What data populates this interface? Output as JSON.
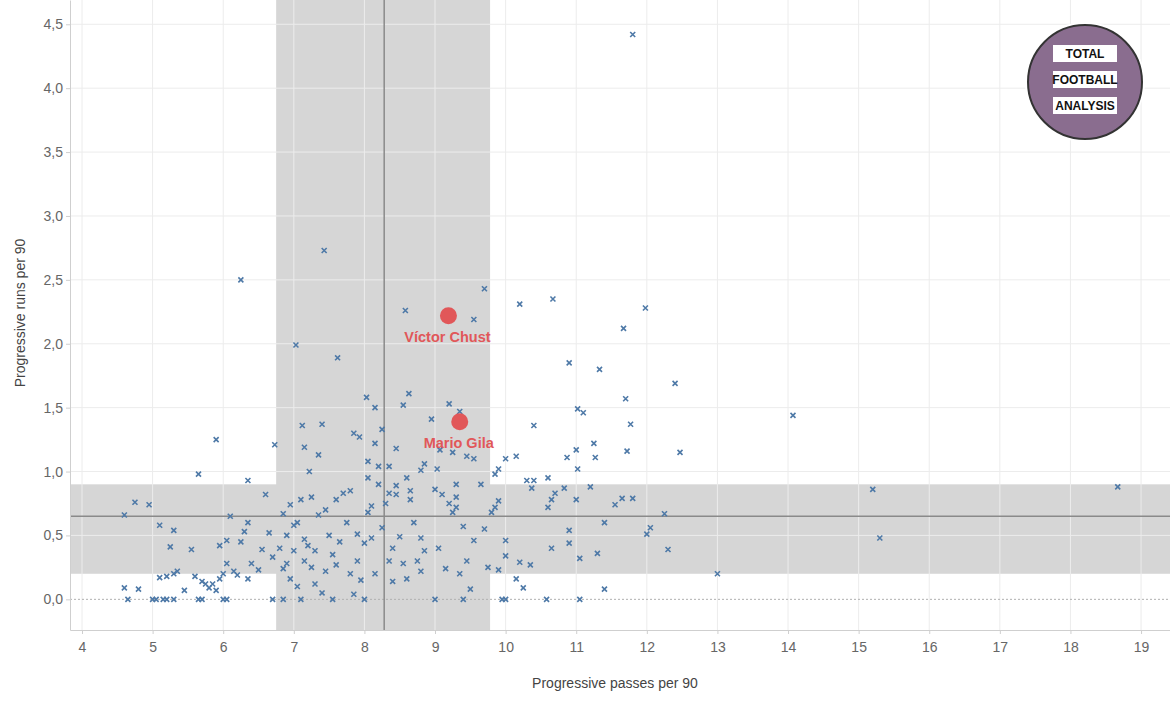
{
  "chart_data": {
    "type": "scatter",
    "x_label": "Progressive passes per 90",
    "y_label": "Progressive runs per 90",
    "xlim": [
      3.83,
      19.41
    ],
    "ylim": [
      -0.24,
      4.69
    ],
    "xticks": [
      4,
      5,
      6,
      7,
      8,
      9,
      10,
      11,
      12,
      13,
      14,
      15,
      16,
      17,
      18,
      19
    ],
    "yticks": [
      {
        "value": 0,
        "label": "0,0"
      },
      {
        "value": 0.5,
        "label": "0,5"
      },
      {
        "value": 1,
        "label": "1,0"
      },
      {
        "value": 1.5,
        "label": "1,5"
      },
      {
        "value": 2,
        "label": "2,0"
      },
      {
        "value": 2.5,
        "label": "2,5"
      },
      {
        "value": 3,
        "label": "3,0"
      },
      {
        "value": 3.5,
        "label": "3,5"
      },
      {
        "value": 4,
        "label": "4,0"
      },
      {
        "value": 4.5,
        "label": "4,5"
      }
    ],
    "grid": true,
    "x_band": [
      6.75,
      9.78
    ],
    "y_band": [
      0.2,
      0.9
    ],
    "x_mean": 8.28,
    "y_mean": 0.65,
    "logo_text": [
      "TOTAL",
      "FOOTBALL",
      "ANALYSIS"
    ],
    "series": [
      {
        "color": "#4e79a7",
        "marker": "x",
        "x": [
          11.8,
          7.43,
          6.25,
          9.7,
          10.67,
          10.2,
          11.98,
          8.58,
          9.55,
          11.67,
          7.03,
          7.62,
          10.9,
          11.33,
          12.4,
          8.63,
          8.03,
          11.7,
          8.55,
          9.2,
          11.02,
          11.1,
          14.07,
          8.15,
          10.4,
          11.77,
          7.4,
          7.12,
          8.95,
          7.93,
          8.15,
          5.9,
          6.73,
          7.15,
          11.25,
          11.0,
          11.72,
          10.0,
          10.15,
          10.87,
          11.27,
          12.47,
          7.35,
          8.25,
          8.05,
          8.2,
          8.35,
          9.45,
          9.55,
          9.07,
          9.03,
          8.8,
          9.9,
          9.85,
          5.65,
          6.35,
          7.22,
          10.6,
          10.3,
          11.02,
          10.83,
          10.7,
          10.37,
          10.4,
          15.2,
          18.67,
          11.8,
          11.2,
          13.0,
          15.3,
          12.0,
          12.05,
          12.25,
          12.3,
          11.55,
          11.65,
          11.4,
          11.05,
          11.05,
          11.3,
          11.4,
          10.58,
          10.65,
          10.9,
          10.9,
          10.15,
          10.25,
          10.2,
          10.35,
          10.0,
          10.0,
          9.95,
          10.0,
          9.9,
          10.6,
          10.65,
          11.0,
          4.6,
          4.65,
          4.6,
          4.75,
          4.8,
          4.95,
          5.0,
          5.05,
          5.1,
          5.1,
          5.15,
          5.2,
          5.2,
          5.25,
          5.3,
          5.35,
          5.3,
          5.3,
          5.45,
          5.55,
          5.6,
          5.7,
          5.75,
          5.65,
          5.7,
          5.8,
          5.85,
          5.9,
          5.95,
          5.95,
          6.0,
          6.05,
          6.0,
          6.05,
          6.05,
          6.1,
          6.15,
          6.2,
          6.25,
          6.3,
          6.35,
          6.4,
          6.35,
          6.5,
          6.55,
          6.6,
          6.65,
          6.7,
          6.7,
          6.85,
          6.9,
          6.8,
          6.95,
          6.85,
          6.9,
          6.95,
          7.0,
          7.05,
          7.1,
          7.15,
          7.1,
          7.15,
          7.2,
          7.25,
          7.3,
          7.35,
          7.4,
          7.45,
          7.45,
          7.5,
          7.55,
          7.55,
          7.6,
          7.65,
          7.7,
          7.75,
          7.8,
          7.8,
          7.85,
          7.9,
          7.95,
          8.0,
          8.0,
          8.05,
          8.1,
          8.15,
          8.2,
          8.25,
          8.3,
          8.35,
          8.35,
          8.4,
          8.45,
          8.5,
          8.55,
          8.6,
          8.65,
          8.7,
          8.75,
          8.8,
          8.85,
          9.0,
          9.0,
          9.05,
          9.1,
          9.15,
          9.2,
          9.25,
          9.3,
          9.35,
          9.4,
          9.4,
          9.45,
          9.5,
          9.55,
          9.65,
          9.7,
          9.75,
          9.8,
          9.85,
          9.9,
          8.1,
          7.6,
          7.25,
          7.05,
          7.3,
          8.4,
          8.65,
          9.3,
          7.9,
          8.8,
          6.85,
          7.0,
          8.05,
          8.45,
          8.6,
          9.3,
          8.85,
          9.35,
          9.25,
          8.45,
          7.85
        ],
        "values": [
          4.42,
          2.73,
          2.5,
          2.43,
          2.35,
          2.31,
          2.28,
          2.26,
          2.19,
          2.12,
          1.99,
          1.89,
          1.85,
          1.8,
          1.69,
          1.61,
          1.58,
          1.57,
          1.52,
          1.53,
          1.49,
          1.46,
          1.44,
          1.5,
          1.36,
          1.37,
          1.37,
          1.36,
          1.41,
          1.27,
          1.22,
          1.25,
          1.21,
          1.19,
          1.22,
          1.17,
          1.16,
          1.1,
          1.12,
          1.11,
          1.11,
          1.15,
          1.13,
          1.33,
          1.08,
          1.04,
          1.04,
          1.12,
          1.1,
          1.17,
          1.02,
          1.01,
          1.02,
          0.98,
          0.98,
          0.93,
          1.0,
          0.95,
          0.93,
          1.02,
          0.87,
          0.83,
          0.87,
          0.93,
          0.86,
          0.88,
          0.79,
          0.88,
          0.2,
          0.48,
          0.51,
          0.56,
          0.67,
          0.39,
          0.74,
          0.79,
          0.08,
          0.0,
          0.32,
          0.36,
          0.6,
          0.0,
          0.4,
          0.44,
          0.54,
          0.16,
          0.09,
          0.29,
          0.27,
          0.34,
          0.46,
          0.0,
          0.0,
          0.23,
          0.72,
          0.78,
          0.78,
          0.09,
          0.0,
          0.66,
          0.76,
          0.08,
          0.74,
          0.0,
          0.0,
          0.17,
          0.58,
          0.0,
          0.0,
          0.18,
          0.41,
          0.2,
          0.22,
          0.0,
          0.54,
          0.07,
          0.39,
          0.18,
          0.14,
          0.12,
          0.0,
          0.0,
          0.09,
          0.12,
          0.07,
          0.16,
          0.42,
          0.0,
          0.0,
          0.2,
          0.28,
          0.46,
          0.65,
          0.22,
          0.19,
          0.45,
          0.53,
          0.6,
          0.28,
          0.16,
          0.23,
          0.39,
          0.82,
          0.52,
          0.33,
          0.0,
          0.0,
          0.28,
          0.4,
          0.74,
          0.24,
          0.5,
          0.16,
          0.58,
          0.6,
          0.78,
          0.47,
          0.0,
          0.3,
          0.42,
          0.25,
          0.12,
          0.66,
          0.05,
          0.7,
          0.22,
          0.5,
          0.35,
          0.0,
          0.27,
          0.45,
          0.83,
          0.6,
          0.85,
          0.2,
          0.04,
          0.51,
          0.15,
          0.0,
          0.44,
          0.68,
          0.73,
          0.2,
          0.9,
          0.56,
          0.75,
          0.83,
          0.3,
          0.14,
          0.82,
          0.49,
          0.28,
          0.16,
          0.85,
          0.6,
          0.3,
          0.48,
          0.38,
          0.86,
          0.0,
          0.4,
          0.82,
          0.24,
          0.75,
          0.68,
          0.72,
          0.2,
          0.0,
          0.57,
          0.3,
          0.08,
          0.46,
          0.9,
          0.55,
          0.25,
          0.68,
          0.72,
          0.77,
          0.48,
          0.78,
          0.8,
          0.1,
          0.38,
          0.4,
          0.78,
          0.8,
          0.3,
          0.22,
          0.67,
          0.38,
          0.95,
          0.89,
          0.95,
          0.9,
          1.06,
          1.47,
          1.15,
          1.18,
          1.3
        ]
      },
      {
        "color": "#e15759",
        "marker": "circle",
        "labels": [
          "Víctor Chust",
          "Mario Gila"
        ],
        "x": [
          9.19,
          9.35
        ],
        "values": [
          2.22,
          1.39
        ]
      }
    ]
  }
}
